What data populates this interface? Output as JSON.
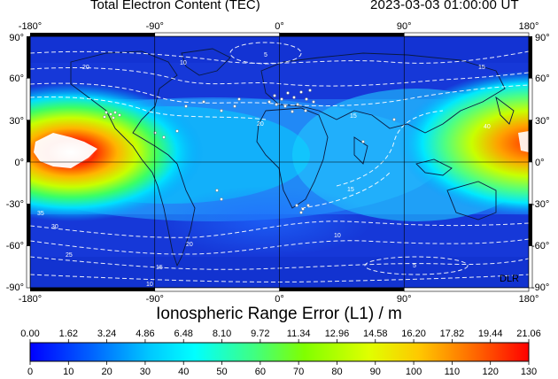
{
  "header": {
    "title": "Total Electron Content (TEC)",
    "datetime": "2023-03-03  01:00:00 UT"
  },
  "map": {
    "lon_ticks": [
      "-180°",
      "-90°",
      "0°",
      "90°",
      "180°"
    ],
    "lat_ticks": [
      "90°",
      "60°",
      "30°",
      "0°",
      "-30°",
      "-60°",
      "-90°"
    ],
    "contour_labels": [
      "5",
      "10",
      "15",
      "20",
      "25",
      "30",
      "35",
      "40"
    ],
    "watermark": "DLR"
  },
  "colorbar": {
    "title": "Ionospheric Range Error (L1) / m",
    "range_error_ticks": [
      "0.00",
      "1.62",
      "3.24",
      "4.86",
      "6.48",
      "8.10",
      "9.72",
      "11.34",
      "12.96",
      "14.58",
      "16.20",
      "17.82",
      "19.44",
      "21.06"
    ],
    "tec_ticks": [
      "0",
      "10",
      "20",
      "30",
      "40",
      "50",
      "60",
      "70",
      "80",
      "90",
      "100",
      "110",
      "120",
      "130"
    ]
  }
}
